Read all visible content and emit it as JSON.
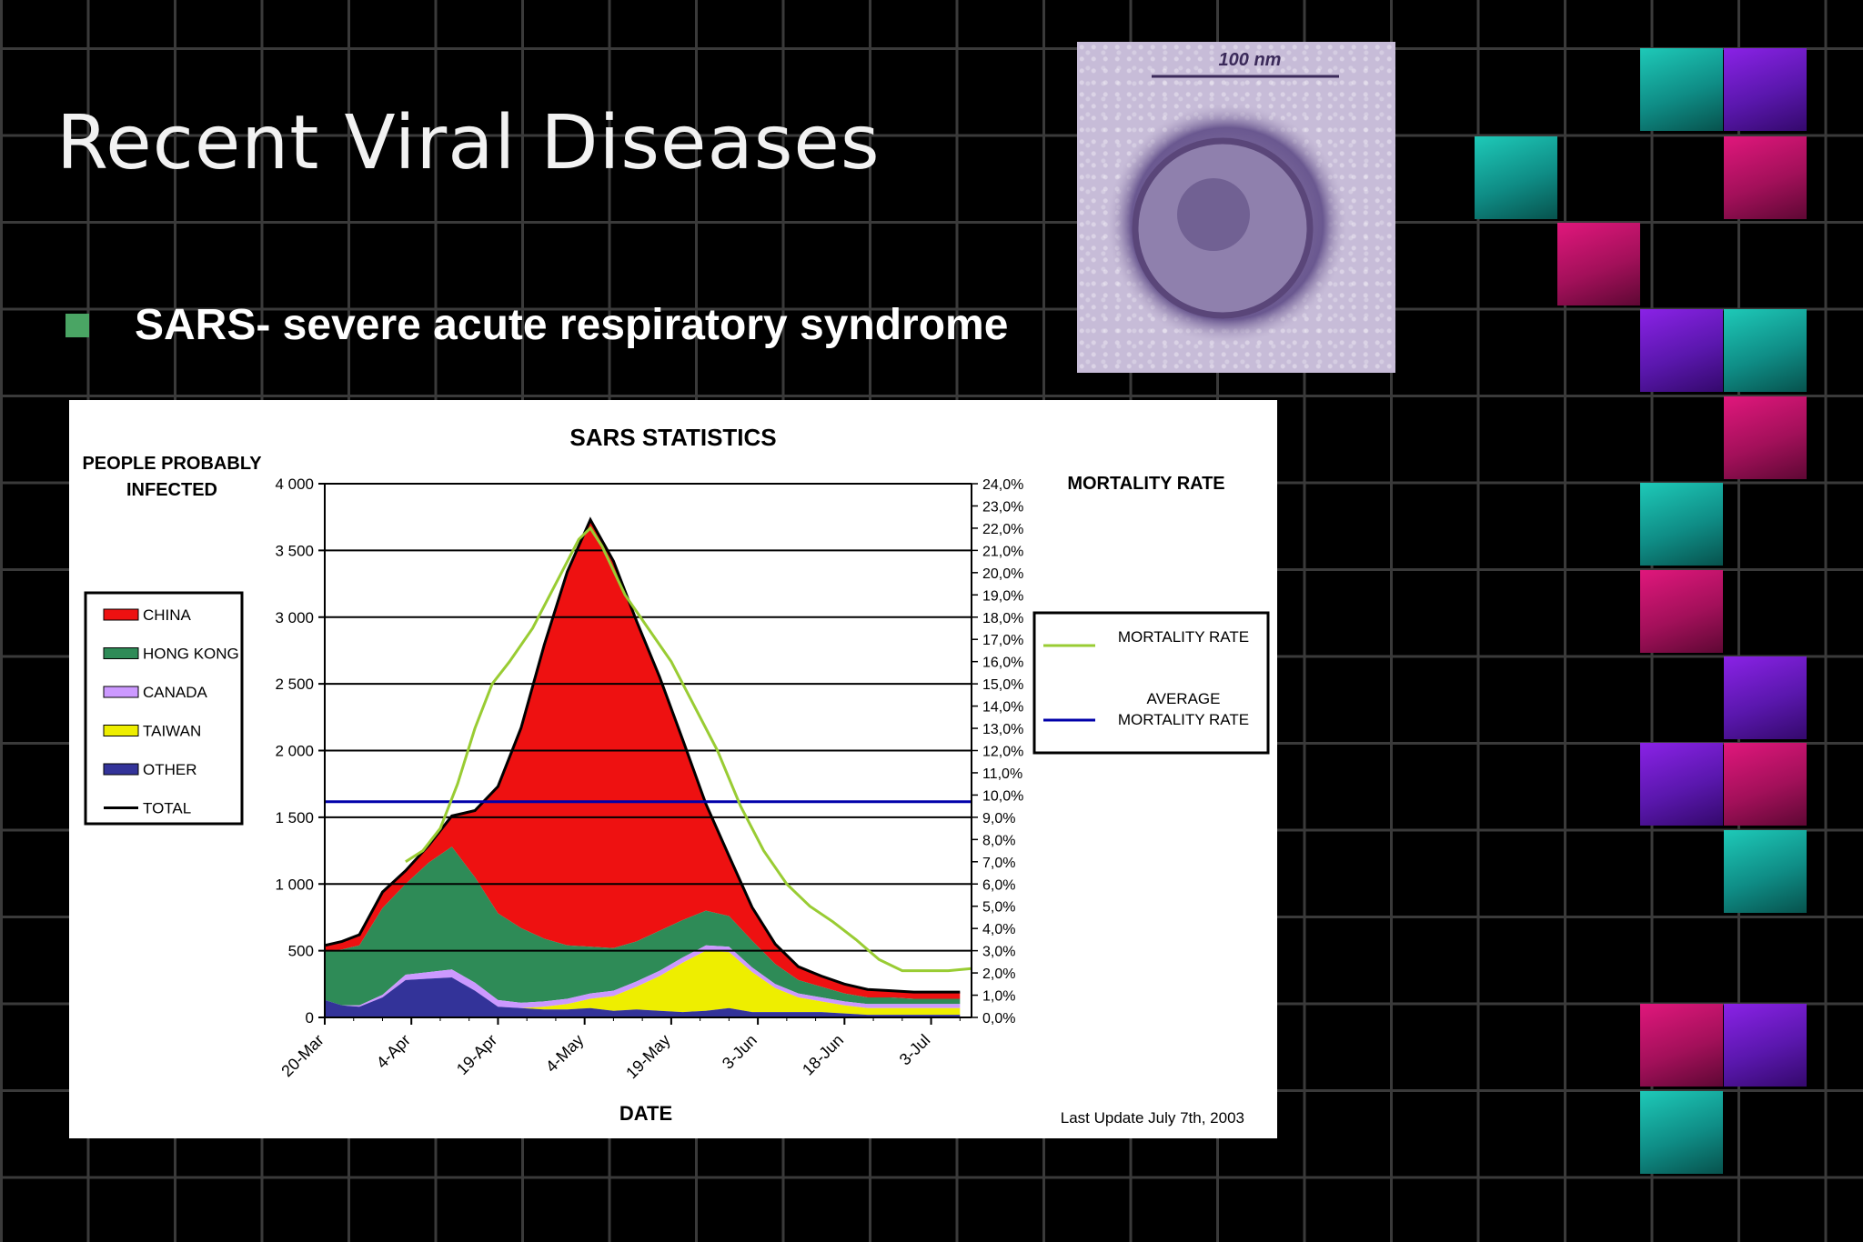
{
  "slide": {
    "title": "Recent Viral Diseases",
    "bullet": "SARS- severe acute respiratory syndrome"
  },
  "micrograph": {
    "scale_label": "100 nm"
  },
  "colors": {
    "bullet": "#4aa564",
    "tile_teal": "#10a99b",
    "tile_magenta": "#c0136a",
    "tile_purple": "#6a1bc8"
  },
  "chart_data": {
    "type": "area",
    "title": "SARS STATISTICS",
    "xlabel": "DATE",
    "ylabel": "PEOPLE PROBABLY INFECTED",
    "y2label": "MORTALITY RATE",
    "footnote": "Last Update July 7th, 2003",
    "x_tick_labels": [
      "20-Mar",
      "4-Apr",
      "19-Apr",
      "4-May",
      "19-May",
      "3-Jun",
      "18-Jun",
      "3-Jul"
    ],
    "x_range": [
      0,
      112
    ],
    "ylim": [
      0,
      4000
    ],
    "y_ticks": [
      0,
      500,
      1000,
      1500,
      2000,
      2500,
      3000,
      3500,
      4000
    ],
    "y_tick_labels": [
      "0",
      "500",
      "1 000",
      "1 500",
      "2 000",
      "2 500",
      "3 000",
      "3 500",
      "4 000"
    ],
    "y2lim": [
      0,
      24
    ],
    "y2_tick_labels": [
      "0,0%",
      "1,0%",
      "2,0%",
      "3,0%",
      "4,0%",
      "5,0%",
      "6,0%",
      "7,0%",
      "8,0%",
      "9,0%",
      "10,0%",
      "11,0%",
      "12,0%",
      "13,0%",
      "14,0%",
      "15,0%",
      "16,0%",
      "17,0%",
      "18,0%",
      "19,0%",
      "20,0%",
      "21,0%",
      "22,0%",
      "23,0%",
      "24,0%"
    ],
    "legend_stack": {
      "placement": "left",
      "items": [
        {
          "label": "CHINA",
          "color": "#ee1111",
          "kind": "area"
        },
        {
          "label": "HONG KONG",
          "color": "#2e8b57",
          "kind": "area"
        },
        {
          "label": "CANADA",
          "color": "#cc99ff",
          "kind": "area"
        },
        {
          "label": "TAIWAN",
          "color": "#eeee00",
          "kind": "area"
        },
        {
          "label": "OTHER",
          "color": "#333399",
          "kind": "area"
        },
        {
          "label": "TOTAL",
          "color": "#000000",
          "kind": "line"
        }
      ]
    },
    "legend_mortality": {
      "placement": "right",
      "items": [
        {
          "label": "MORTALITY RATE",
          "color": "#99cc33"
        },
        {
          "label": "AVERAGE MORTALITY RATE",
          "label_lines": [
            "AVERAGE",
            "MORTALITY RATE"
          ],
          "color": "#0000aa"
        }
      ]
    },
    "x": [
      0,
      3,
      6,
      10,
      14,
      18,
      22,
      26,
      30,
      34,
      38,
      42,
      46,
      50,
      54,
      58,
      62,
      66,
      70,
      74,
      78,
      82,
      86,
      90,
      94,
      98,
      102,
      106,
      110
    ],
    "series": [
      {
        "name": "OTHER",
        "values": [
          130,
          90,
          80,
          150,
          280,
          290,
          300,
          200,
          80,
          70,
          60,
          60,
          70,
          50,
          60,
          50,
          40,
          50,
          70,
          40,
          40,
          40,
          40,
          30,
          20,
          20,
          20,
          20,
          20
        ]
      },
      {
        "name": "TAIWAN",
        "values": [
          0,
          0,
          0,
          0,
          0,
          0,
          0,
          0,
          0,
          0,
          20,
          40,
          70,
          110,
          170,
          260,
          370,
          450,
          420,
          300,
          180,
          110,
          80,
          60,
          50,
          50,
          50,
          50,
          50
        ]
      },
      {
        "name": "CANADA",
        "values": [
          0,
          0,
          10,
          20,
          40,
          50,
          60,
          60,
          50,
          40,
          40,
          40,
          40,
          40,
          40,
          40,
          40,
          40,
          40,
          35,
          30,
          30,
          30,
          30,
          30,
          30,
          30,
          30,
          30
        ]
      },
      {
        "name": "HONG KONG",
        "values": [
          370,
          420,
          450,
          650,
          680,
          820,
          920,
          790,
          650,
          560,
          470,
          400,
          350,
          320,
          300,
          300,
          280,
          260,
          230,
          200,
          150,
          100,
          80,
          60,
          50,
          50,
          40,
          40,
          40
        ]
      },
      {
        "name": "CHINA",
        "values": [
          40,
          60,
          80,
          120,
          100,
          130,
          230,
          500,
          950,
          1500,
          2200,
          2800,
          3200,
          2900,
          2400,
          1900,
          1350,
          800,
          450,
          250,
          150,
          100,
          80,
          70,
          60,
          50,
          50,
          50,
          50
        ]
      }
    ],
    "total_line": {
      "name": "TOTAL",
      "values": [
        540,
        570,
        620,
        940,
        1100,
        1290,
        1510,
        1550,
        1730,
        2170,
        2790,
        3340,
        3730,
        3420,
        2970,
        2550,
        2080,
        1600,
        1210,
        825,
        550,
        380,
        310,
        250,
        210,
        200,
        190,
        190,
        190
      ]
    },
    "mortality_line": {
      "name": "MORTALITY RATE",
      "x": [
        14,
        17,
        20,
        23,
        26,
        29,
        32,
        36,
        40,
        44,
        46,
        48,
        52,
        56,
        60,
        64,
        68,
        72,
        76,
        80,
        84,
        88,
        92,
        96,
        100,
        104,
        108,
        112
      ],
      "values": [
        7.0,
        7.5,
        8.5,
        10.5,
        13.0,
        15.0,
        16.0,
        17.5,
        19.5,
        21.5,
        22.0,
        21.2,
        19.0,
        17.5,
        16.0,
        14.0,
        12.0,
        9.5,
        7.5,
        6.0,
        5.0,
        4.3,
        3.5,
        2.6,
        2.1,
        2.1,
        2.1,
        2.2
      ]
    },
    "average_mortality": 9.7,
    "grid": "horizontal"
  }
}
